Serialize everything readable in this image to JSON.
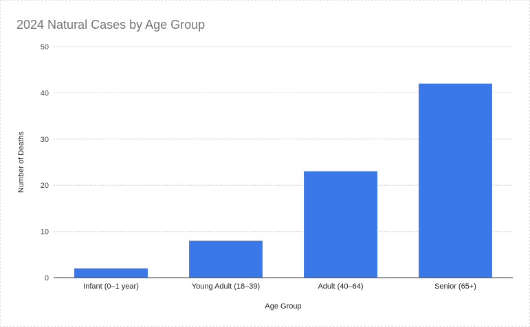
{
  "chart_data": {
    "type": "bar",
    "title": "2024 Natural Cases by Age Group",
    "xlabel": "Age Group",
    "ylabel": "Number of Deaths",
    "categories": [
      "Infant (0–1 year)",
      "Young Adult (18–39)",
      "Adult (40–64)",
      "Senior (65+)"
    ],
    "values": [
      2,
      8,
      23,
      42
    ],
    "ylim": [
      0,
      50
    ],
    "yticks": [
      0,
      10,
      20,
      30,
      40,
      50
    ],
    "grid": true,
    "legend": "none",
    "bar_color": "#3b78e7"
  }
}
